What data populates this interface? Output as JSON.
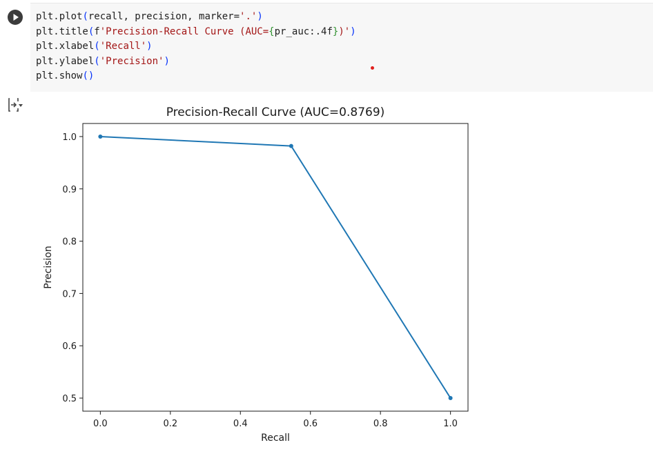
{
  "code_cell": {
    "lines": [
      "plt.plot(recall, precision, marker='.')",
      "plt.title(f'Precision-Recall Curve (AUC={pr_auc:.4f})')",
      "plt.xlabel('Recall')",
      "plt.ylabel('Precision')",
      "plt.show()"
    ],
    "run_icon": "play-icon",
    "output_icon": "output-toggle-icon"
  },
  "chart_data": {
    "type": "line",
    "title": "Precision-Recall Curve (AUC=0.8769)",
    "xlabel": "Recall",
    "ylabel": "Precision",
    "xlim": [
      -0.05,
      1.05
    ],
    "ylim": [
      0.475,
      1.025
    ],
    "xticks": [
      0.0,
      0.2,
      0.4,
      0.6,
      0.8,
      1.0
    ],
    "xtick_labels": [
      "0.0",
      "0.2",
      "0.4",
      "0.6",
      "0.8",
      "1.0"
    ],
    "yticks": [
      0.5,
      0.6,
      0.7,
      0.8,
      0.9,
      1.0
    ],
    "ytick_labels": [
      "0.5",
      "0.6",
      "0.7",
      "0.8",
      "0.9",
      "1.0"
    ],
    "series": [
      {
        "x": [
          0.0,
          0.545,
          1.0
        ],
        "y": [
          1.0,
          0.982,
          0.5
        ],
        "marker": ".",
        "color": "#1f77b4"
      }
    ],
    "grid": false
  }
}
